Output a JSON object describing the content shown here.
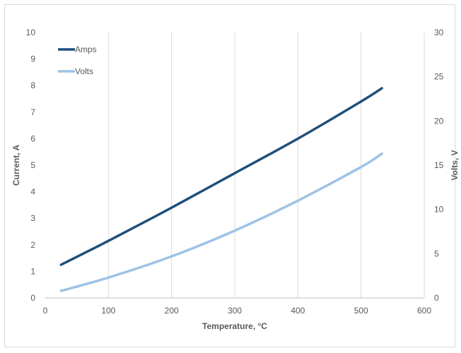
{
  "chart_data": {
    "type": "line",
    "xlabel": "Temperature, °C",
    "ylabel": "Current, A",
    "y2label": "Volts, V",
    "xlim": [
      0,
      600
    ],
    "ylim": [
      0,
      10
    ],
    "y2lim": [
      0,
      30
    ],
    "xticks": [
      0,
      100,
      200,
      300,
      400,
      500,
      600
    ],
    "yticks": [
      0,
      1,
      2,
      3,
      4,
      5,
      6,
      7,
      8,
      9,
      10
    ],
    "y2ticks": [
      0,
      5,
      10,
      15,
      20,
      25,
      30
    ],
    "grid": "vertical",
    "legend_position": "top-left",
    "series": [
      {
        "name": "Amps",
        "axis": "left",
        "color": "#1f4e79",
        "x": [
          25,
          100,
          200,
          300,
          400,
          500,
          533
        ],
        "values": [
          1.25,
          2.15,
          3.4,
          4.7,
          6.0,
          7.4,
          7.9
        ]
      },
      {
        "name": "Volts",
        "axis": "right",
        "color": "#9dc3e6",
        "x": [
          25,
          100,
          200,
          300,
          400,
          500,
          533
        ],
        "values": [
          0.8,
          2.3,
          4.7,
          7.6,
          11.0,
          14.8,
          16.3
        ]
      }
    ]
  }
}
